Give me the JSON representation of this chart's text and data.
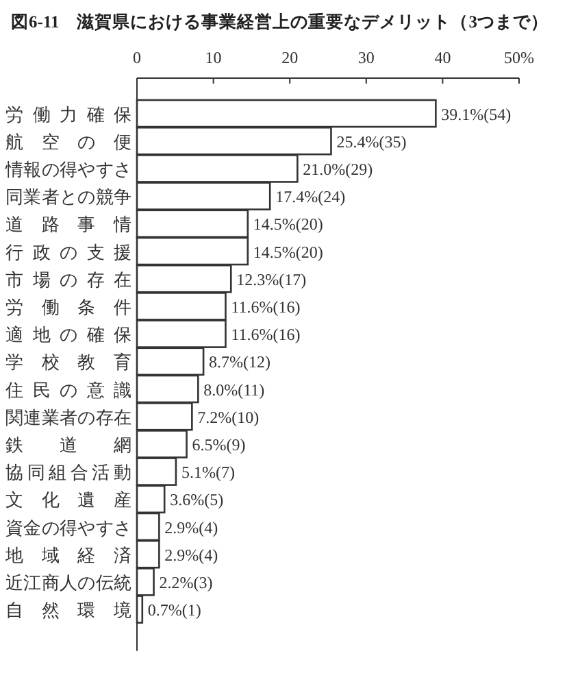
{
  "chart_data": {
    "type": "bar",
    "orientation": "horizontal",
    "title": "図6-11　滋賀県における事業経営上の重要なデメリット（3つまで）",
    "categories": [
      "労働力確保",
      "航空の便",
      "情報の得やすさ",
      "同業者との競争",
      "道路事情",
      "行政の支援",
      "市場の存在",
      "労働条件",
      "適地の確保",
      "学校教育",
      "住民の意識",
      "関連業者の存在",
      "鉄道網",
      "協同組合活動",
      "文化遺産",
      "資金の得やすさ",
      "地域経済",
      "近江商人の伝統",
      "自然環境"
    ],
    "values": [
      39.1,
      25.4,
      21.0,
      17.4,
      14.5,
      14.5,
      12.3,
      11.6,
      11.6,
      8.7,
      8.0,
      7.2,
      6.5,
      5.1,
      3.6,
      2.9,
      2.9,
      2.2,
      0.7
    ],
    "value_labels": [
      "39.1%(54)",
      "25.4%(35)",
      "21.0%(29)",
      "17.4%(24)",
      "14.5%(20)",
      "14.5%(20)",
      "12.3%(17)",
      "11.6%(16)",
      "11.6%(16)",
      "8.7%(12)",
      "8.0%(11)",
      "7.2%(10)",
      "6.5%(9)",
      "5.1%(7)",
      "3.6%(5)",
      "2.9%(4)",
      "2.9%(4)",
      "2.2%(3)",
      "0.7%(1)"
    ],
    "color": "#ffffff",
    "xlim": [
      0,
      50
    ],
    "xticks": [
      0,
      10,
      20,
      30,
      40,
      {
        "value": 50,
        "label": "50%"
      }
    ]
  }
}
